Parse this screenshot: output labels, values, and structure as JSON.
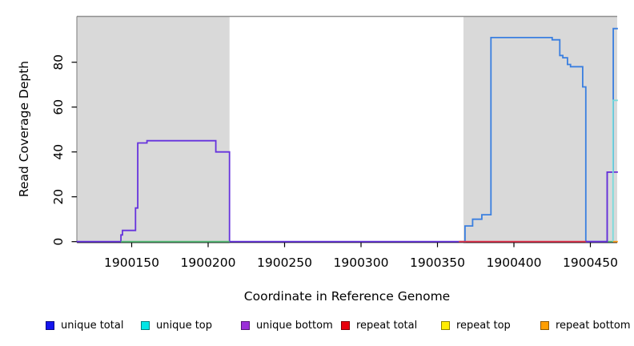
{
  "chart_data": {
    "type": "line",
    "title": "",
    "xlabel": "Coordinate in Reference Genome",
    "ylabel": "Read Coverage Depth",
    "x_ticks": [
      1900150,
      1900200,
      1900250,
      1900300,
      1900350,
      1900400,
      1900450
    ],
    "y_ticks": [
      0,
      20,
      40,
      60,
      80
    ],
    "xlim": [
      1900114,
      1900468
    ],
    "ylim": [
      0,
      101
    ],
    "grid": false,
    "legend_position": "bottom",
    "shaded_regions": [
      {
        "name": "left-gray-block",
        "x0": 1900114,
        "x1": 1900214,
        "color": "#d9d9d9"
      },
      {
        "name": "right-gray-block",
        "x0": 1900367,
        "x1": 1900468,
        "color": "#d9d9d9"
      }
    ],
    "series": [
      {
        "name": "unique-bottom-left",
        "color": "#6633dd",
        "points": [
          [
            1900114,
            0
          ],
          [
            1900143,
            0
          ],
          [
            1900143,
            3
          ],
          [
            1900144,
            3
          ],
          [
            1900144,
            5
          ],
          [
            1900152.5,
            5
          ],
          [
            1900152.5,
            15
          ],
          [
            1900154,
            15
          ],
          [
            1900154,
            44
          ],
          [
            1900160,
            44
          ],
          [
            1900160,
            45
          ],
          [
            1900205,
            45
          ],
          [
            1900205,
            40
          ],
          [
            1900214,
            40
          ],
          [
            1900214,
            0
          ],
          [
            1900364,
            0
          ]
        ]
      },
      {
        "name": "unique-total-right",
        "color": "#3a7fe0",
        "points": [
          [
            1900364,
            0
          ],
          [
            1900368,
            0
          ],
          [
            1900368,
            7
          ],
          [
            1900373,
            7
          ],
          [
            1900373,
            10
          ],
          [
            1900379,
            10
          ],
          [
            1900379,
            12
          ],
          [
            1900385,
            12
          ],
          [
            1900385,
            91
          ],
          [
            1900425,
            91
          ],
          [
            1900425,
            90
          ],
          [
            1900430,
            90
          ],
          [
            1900430,
            83
          ],
          [
            1900432,
            83
          ],
          [
            1900432,
            82
          ],
          [
            1900435,
            82
          ],
          [
            1900435,
            79
          ],
          [
            1900437,
            79
          ],
          [
            1900437,
            78
          ],
          [
            1900445,
            78
          ],
          [
            1900445,
            69
          ],
          [
            1900447,
            69
          ],
          [
            1900447,
            0
          ],
          [
            1900461,
            0
          ],
          [
            1900461,
            31
          ],
          [
            1900465,
            31
          ],
          [
            1900465,
            95
          ],
          [
            1900468,
            95
          ]
        ]
      },
      {
        "name": "repeat-total-baseline-right",
        "color": "#e0314b",
        "points": [
          [
            1900364,
            0
          ],
          [
            1900448,
            0
          ]
        ]
      },
      {
        "name": "unique-bottom-right",
        "color": "#6a2fd8",
        "points": [
          [
            1900447,
            0
          ],
          [
            1900461,
            0
          ],
          [
            1900461,
            31
          ],
          [
            1900468,
            31
          ]
        ]
      },
      {
        "name": "green-baseline-left",
        "color": "#55bb77",
        "points": [
          [
            1900143,
            0
          ],
          [
            1900214,
            0
          ]
        ]
      },
      {
        "name": "green-baseline-right",
        "color": "#55bb77",
        "points": [
          [
            1900461.5,
            0
          ],
          [
            1900464.8,
            0
          ]
        ]
      },
      {
        "name": "unique-top-right",
        "color": "#7adcdc",
        "points": [
          [
            1900464.8,
            0
          ],
          [
            1900464.8,
            63
          ],
          [
            1900468,
            63
          ]
        ]
      },
      {
        "name": "repeat-bottom-right",
        "color": "#ff9e1b",
        "points": [
          [
            1900464.8,
            0
          ],
          [
            1900468,
            0
          ]
        ]
      }
    ],
    "legend": [
      {
        "label": "unique total",
        "color": "#1414ee"
      },
      {
        "label": "unique top",
        "color": "#00e6e6"
      },
      {
        "label": "unique bottom",
        "color": "#9b30d9"
      },
      {
        "label": "repeat total",
        "color": "#e8000d"
      },
      {
        "label": "repeat top",
        "color": "#ffec00"
      },
      {
        "label": "repeat bottom",
        "color": "#ff9e00"
      }
    ]
  }
}
